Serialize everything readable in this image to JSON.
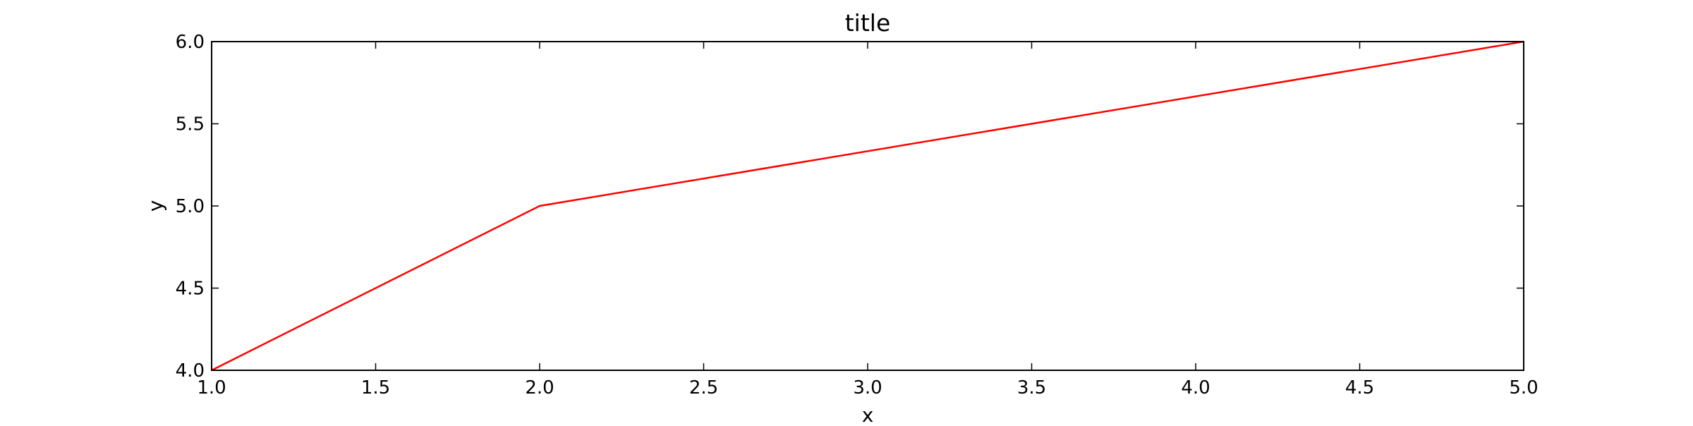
{
  "chart_data": {
    "type": "line",
    "title": "title",
    "xlabel": "x",
    "ylabel": "y",
    "xlim": [
      1.0,
      5.0
    ],
    "ylim": [
      4.0,
      6.0
    ],
    "x_ticks": [
      "1.0",
      "1.5",
      "2.0",
      "2.5",
      "3.0",
      "3.5",
      "4.0",
      "4.5",
      "5.0"
    ],
    "y_ticks": [
      "4.0",
      "4.5",
      "5.0",
      "5.5",
      "6.0"
    ],
    "grid": false,
    "series": [
      {
        "color": "#ff0000",
        "x": [
          1.0,
          2.0,
          5.0
        ],
        "y": [
          4.0,
          5.0,
          6.0
        ]
      }
    ]
  }
}
